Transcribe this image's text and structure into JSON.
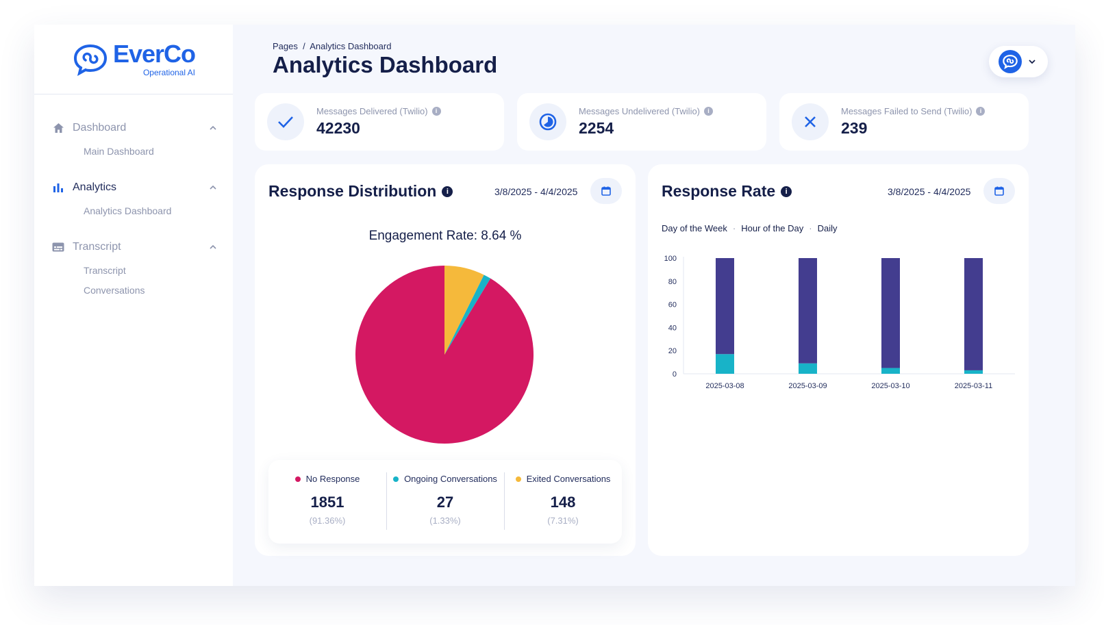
{
  "sidebar": {
    "logo_name": "EverCo",
    "logo_sub": "Operational AI",
    "groups": [
      {
        "label": "Dashboard",
        "items": [
          "Main Dashboard"
        ]
      },
      {
        "label": "Analytics",
        "items": [
          "Analytics Dashboard"
        ]
      },
      {
        "label": "Transcript",
        "items": [
          "Transcript",
          "Conversations"
        ]
      }
    ]
  },
  "header": {
    "breadcrumb": "Pages  /  Analytics Dashboard",
    "title": "Analytics Dashboard"
  },
  "stats": [
    {
      "label": "Messages Delivered (Twilio)",
      "value": "42230",
      "icon": "check-icon"
    },
    {
      "label": "Messages Undelivered (Twilio)",
      "value": "2254",
      "icon": "pie-icon"
    },
    {
      "label": "Messages Failed to Send (Twilio)",
      "value": "239",
      "icon": "close-icon"
    }
  ],
  "distribution": {
    "title": "Response Distribution",
    "date_range": "3/8/2025 - 4/4/2025",
    "engagement": "Engagement Rate: 8.64 %",
    "legend": [
      {
        "label": "No Response",
        "value": "1851",
        "pct": "(91.36%)",
        "color": "#d41862"
      },
      {
        "label": "Ongoing Conversations",
        "value": "27",
        "pct": "(1.33%)",
        "color": "#18b3c8"
      },
      {
        "label": "Exited Conversations",
        "value": "148",
        "pct": "(7.31%)",
        "color": "#f5b93b"
      }
    ]
  },
  "rate": {
    "title": "Response Rate",
    "date_range": "3/8/2025 - 4/4/2025",
    "tabs": [
      "Day of the Week",
      "Hour of the Day",
      "Daily"
    ]
  },
  "chart_data": [
    {
      "type": "pie",
      "title": "Response Distribution",
      "labels": [
        "No Response",
        "Ongoing Conversations",
        "Exited Conversations"
      ],
      "values": [
        1851,
        27,
        148
      ],
      "colors": [
        "#d41862",
        "#18b3c8",
        "#f5b93b"
      ]
    },
    {
      "type": "bar",
      "title": "Response Rate",
      "stacked": true,
      "categories": [
        "2025-03-08",
        "2025-03-09",
        "2025-03-10",
        "2025-03-11"
      ],
      "series": [
        {
          "values": [
            17,
            9,
            5,
            3
          ],
          "color": "#18b3c8"
        },
        {
          "values": [
            83,
            91,
            95,
            97
          ],
          "color": "#433d8f"
        }
      ],
      "ylim": [
        0,
        100
      ],
      "yticks": [
        0,
        20,
        40,
        60,
        80,
        100
      ]
    }
  ]
}
